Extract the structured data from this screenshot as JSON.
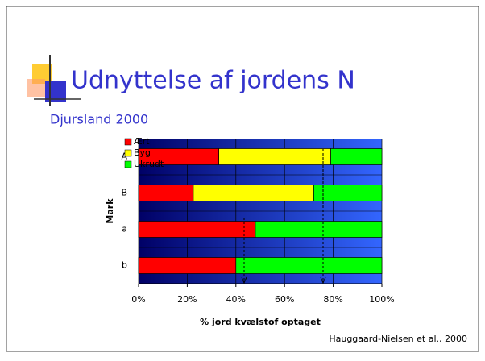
{
  "page": {
    "title": "Udnyttelse af jordens N",
    "subtitle": "Djursland 2000",
    "source": "Hauggaard-Nielsen et al., 2000"
  },
  "chart_data": {
    "type": "stacked_barh",
    "categories": [
      "A",
      "B",
      "a",
      "b"
    ],
    "series": [
      {
        "name": "Ært",
        "color": "#ff0000",
        "values": [
          33,
          22.5,
          48,
          40
        ]
      },
      {
        "name": "Byg",
        "color": "#ffff00",
        "values": [
          46,
          49.5,
          0,
          0
        ]
      },
      {
        "name": "Ukrudt",
        "color": "#00ff00",
        "values": [
          21,
          28,
          52,
          60
        ]
      }
    ],
    "xlabel": "% jord kvælstof optaget",
    "ylabel": "Mark",
    "xlim": [
      0,
      100
    ],
    "xticks": [
      {
        "value": 0,
        "label": "0%"
      },
      {
        "value": 20,
        "label": "20%"
      },
      {
        "value": 40,
        "label": "40%"
      },
      {
        "value": 60,
        "label": "60%"
      },
      {
        "value": 80,
        "label": "80%"
      },
      {
        "value": 100,
        "label": "100%"
      }
    ],
    "grid": true,
    "legend": "upper left"
  }
}
